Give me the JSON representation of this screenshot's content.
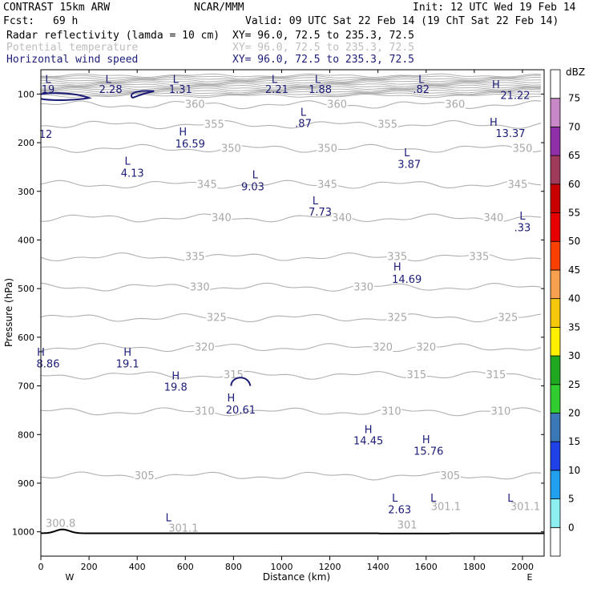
{
  "header": {
    "model": "CONTRAST 15km ARW",
    "org": "NCAR/MMM",
    "init": "Init: 12 UTC Wed 19 Feb 14",
    "fcst_label": "Fcst:",
    "fcst_value": "69 h",
    "valid": "Valid: 09 UTC Sat 22 Feb 14 (19 ChT Sat 22 Feb 14)",
    "fields": [
      {
        "name": "Radar reflectivity (lamda = 10 cm)",
        "xy": "XY=  96.0, 72.5 to 235.3, 72.5",
        "color": "#000000"
      },
      {
        "name": "Potential temperature",
        "xy": "XY=  96.0, 72.5 to 235.3, 72.5",
        "color": "#bdbdbd"
      },
      {
        "name": "Horizontal wind speed",
        "xy": "XY=  96.0, 72.5 to 235.3, 72.5",
        "color": "#1c1c78"
      }
    ]
  },
  "chart_data": {
    "type": "cross-section",
    "xlabel": "Distance (km)",
    "ylabel": "Pressure (hPa)",
    "xlim": [
      0,
      2090
    ],
    "ylim": [
      1050,
      50
    ],
    "x_ticks": [
      0,
      200,
      400,
      600,
      800,
      1000,
      1200,
      1400,
      1600,
      1800,
      2000
    ],
    "y_ticks": [
      100,
      200,
      300,
      400,
      500,
      600,
      700,
      800,
      900,
      1000
    ],
    "x_end_labels": {
      "left": "W",
      "right": "E"
    },
    "theta_isentropes": [
      {
        "value": 305,
        "p": 885,
        "labels": [
          {
            "x": 430,
            "t": "305"
          },
          {
            "x": 1700,
            "t": "305"
          }
        ]
      },
      {
        "value": 310,
        "p": 753,
        "labels": [
          {
            "x": 680,
            "t": "310"
          },
          {
            "x": 1455,
            "t": "310"
          },
          {
            "x": 1910,
            "t": "310"
          }
        ]
      },
      {
        "value": 315,
        "p": 678,
        "labels": [
          {
            "x": 800,
            "t": "315"
          },
          {
            "x": 1560,
            "t": "315"
          },
          {
            "x": 1890,
            "t": "315"
          }
        ]
      },
      {
        "value": 320,
        "p": 621,
        "labels": [
          {
            "x": 680,
            "t": "320"
          },
          {
            "x": 1420,
            "t": "320"
          },
          {
            "x": 1600,
            "t": "320"
          }
        ]
      },
      {
        "value": 325,
        "p": 560,
        "labels": [
          {
            "x": 730,
            "t": "325"
          },
          {
            "x": 1480,
            "t": "325"
          },
          {
            "x": 1940,
            "t": "325"
          }
        ]
      },
      {
        "value": 330,
        "p": 497,
        "labels": [
          {
            "x": 660,
            "t": "330"
          },
          {
            "x": 1340,
            "t": "330"
          }
        ]
      },
      {
        "value": 335,
        "p": 435,
        "labels": [
          {
            "x": 640,
            "t": "335"
          },
          {
            "x": 1480,
            "t": "335"
          },
          {
            "x": 1820,
            "t": "335"
          }
        ]
      },
      {
        "value": 340,
        "p": 355,
        "labels": [
          {
            "x": 750,
            "t": "340"
          },
          {
            "x": 1250,
            "t": "340"
          },
          {
            "x": 1880,
            "t": "340"
          }
        ]
      },
      {
        "value": 345,
        "p": 286,
        "labels": [
          {
            "x": 690,
            "t": "345"
          },
          {
            "x": 1190,
            "t": "345"
          },
          {
            "x": 1980,
            "t": "345"
          }
        ]
      },
      {
        "value": 350,
        "p": 212,
        "labels": [
          {
            "x": 790,
            "t": "350"
          },
          {
            "x": 1190,
            "t": "350"
          },
          {
            "x": 2000,
            "t": "350"
          }
        ]
      },
      {
        "value": 355,
        "p": 163,
        "labels": [
          {
            "x": 720,
            "t": "355"
          },
          {
            "x": 1440,
            "t": "355"
          }
        ]
      },
      {
        "value": 360,
        "p": 122,
        "labels": [
          {
            "x": 640,
            "t": "360"
          },
          {
            "x": 1230,
            "t": "360"
          },
          {
            "x": 1720,
            "t": "360"
          }
        ]
      }
    ],
    "theta_surface_labels": [
      {
        "x": 20,
        "p": 990,
        "t": "300.8"
      },
      {
        "x": 530,
        "p": 1000,
        "t": "301.1"
      },
      {
        "x": 1480,
        "p": 993,
        "t": "301"
      },
      {
        "x": 1620,
        "p": 955,
        "t": "301.1"
      },
      {
        "x": 1950,
        "p": 955,
        "t": "301.1"
      }
    ],
    "wind_labels": [
      {
        "x": 30,
        "p": 98,
        "t": "19"
      },
      {
        "x": 290,
        "p": 98,
        "t": "2.28"
      },
      {
        "x": 580,
        "p": 98,
        "t": "1.31"
      },
      {
        "x": 980,
        "p": 98,
        "t": "2.21"
      },
      {
        "x": 1160,
        "p": 98,
        "t": "1.88"
      },
      {
        "x": 1580,
        "p": 98,
        "t": ".82"
      },
      {
        "x": 1970,
        "p": 110,
        "t": "21.22"
      },
      {
        "x": 20,
        "p": 190,
        "t": "12"
      },
      {
        "x": 620,
        "p": 210,
        "t": "16.59"
      },
      {
        "x": 1090,
        "p": 168,
        "t": ".87"
      },
      {
        "x": 1950,
        "p": 188,
        "t": "13.37"
      },
      {
        "x": 380,
        "p": 270,
        "t": "4.13"
      },
      {
        "x": 880,
        "p": 298,
        "t": "9.03"
      },
      {
        "x": 1530,
        "p": 252,
        "t": "3.87"
      },
      {
        "x": 1160,
        "p": 350,
        "t": "7.73"
      },
      {
        "x": 2000,
        "p": 382,
        "t": ".33"
      },
      {
        "x": 1520,
        "p": 488,
        "t": "14.69"
      },
      {
        "x": 30,
        "p": 662,
        "t": "8.86"
      },
      {
        "x": 360,
        "p": 662,
        "t": "19.1"
      },
      {
        "x": 560,
        "p": 710,
        "t": "19.8"
      },
      {
        "x": 830,
        "p": 757,
        "t": "20.61"
      },
      {
        "x": 1360,
        "p": 820,
        "t": "14.45"
      },
      {
        "x": 1610,
        "p": 842,
        "t": "15.76"
      },
      {
        "x": 1490,
        "p": 962,
        "t": "2.63"
      }
    ],
    "wind_markers": [
      {
        "x": 30,
        "p": 77,
        "t": "L"
      },
      {
        "x": 280,
        "p": 77,
        "t": "L"
      },
      {
        "x": 560,
        "p": 77,
        "t": "L"
      },
      {
        "x": 970,
        "p": 77,
        "t": "L"
      },
      {
        "x": 1150,
        "p": 77,
        "t": "L"
      },
      {
        "x": 1580,
        "p": 77,
        "t": "L"
      },
      {
        "x": 1890,
        "p": 88,
        "t": "H"
      },
      {
        "x": 1880,
        "p": 165,
        "t": "H"
      },
      {
        "x": 590,
        "p": 185,
        "t": "H"
      },
      {
        "x": 1090,
        "p": 145,
        "t": "L"
      },
      {
        "x": 360,
        "p": 245,
        "t": "L"
      },
      {
        "x": 890,
        "p": 273,
        "t": "L"
      },
      {
        "x": 1520,
        "p": 228,
        "t": "L"
      },
      {
        "x": 1140,
        "p": 327,
        "t": "L"
      },
      {
        "x": 2000,
        "p": 358,
        "t": "L"
      },
      {
        "x": 1480,
        "p": 463,
        "t": "H"
      },
      {
        "x": 0,
        "p": 638,
        "t": "H"
      },
      {
        "x": 360,
        "p": 638,
        "t": "H"
      },
      {
        "x": 560,
        "p": 687,
        "t": "H"
      },
      {
        "x": 790,
        "p": 732,
        "t": "H"
      },
      {
        "x": 1360,
        "p": 797,
        "t": "H"
      },
      {
        "x": 1600,
        "p": 818,
        "t": "H"
      },
      {
        "x": 1470,
        "p": 938,
        "t": "L"
      },
      {
        "x": 1630,
        "p": 938,
        "t": "L"
      },
      {
        "x": 1950,
        "p": 938,
        "t": "L"
      },
      {
        "x": 530,
        "p": 978,
        "t": "L"
      }
    ],
    "legend": {
      "title": "dBZ",
      "levels": [
        0,
        5,
        10,
        15,
        20,
        25,
        30,
        35,
        40,
        45,
        50,
        55,
        60,
        65,
        70,
        75
      ],
      "colors": [
        "#ffffff",
        "#8cf0f0",
        "#22a0f0",
        "#2040e8",
        "#3a78b8",
        "#30cc30",
        "#21a821",
        "#fff000",
        "#f6c80c",
        "#f6a050",
        "#fa4000",
        "#e80000",
        "#c80000",
        "#a03a5a",
        "#9030a8",
        "#c888c8",
        "#ffffff"
      ]
    }
  }
}
